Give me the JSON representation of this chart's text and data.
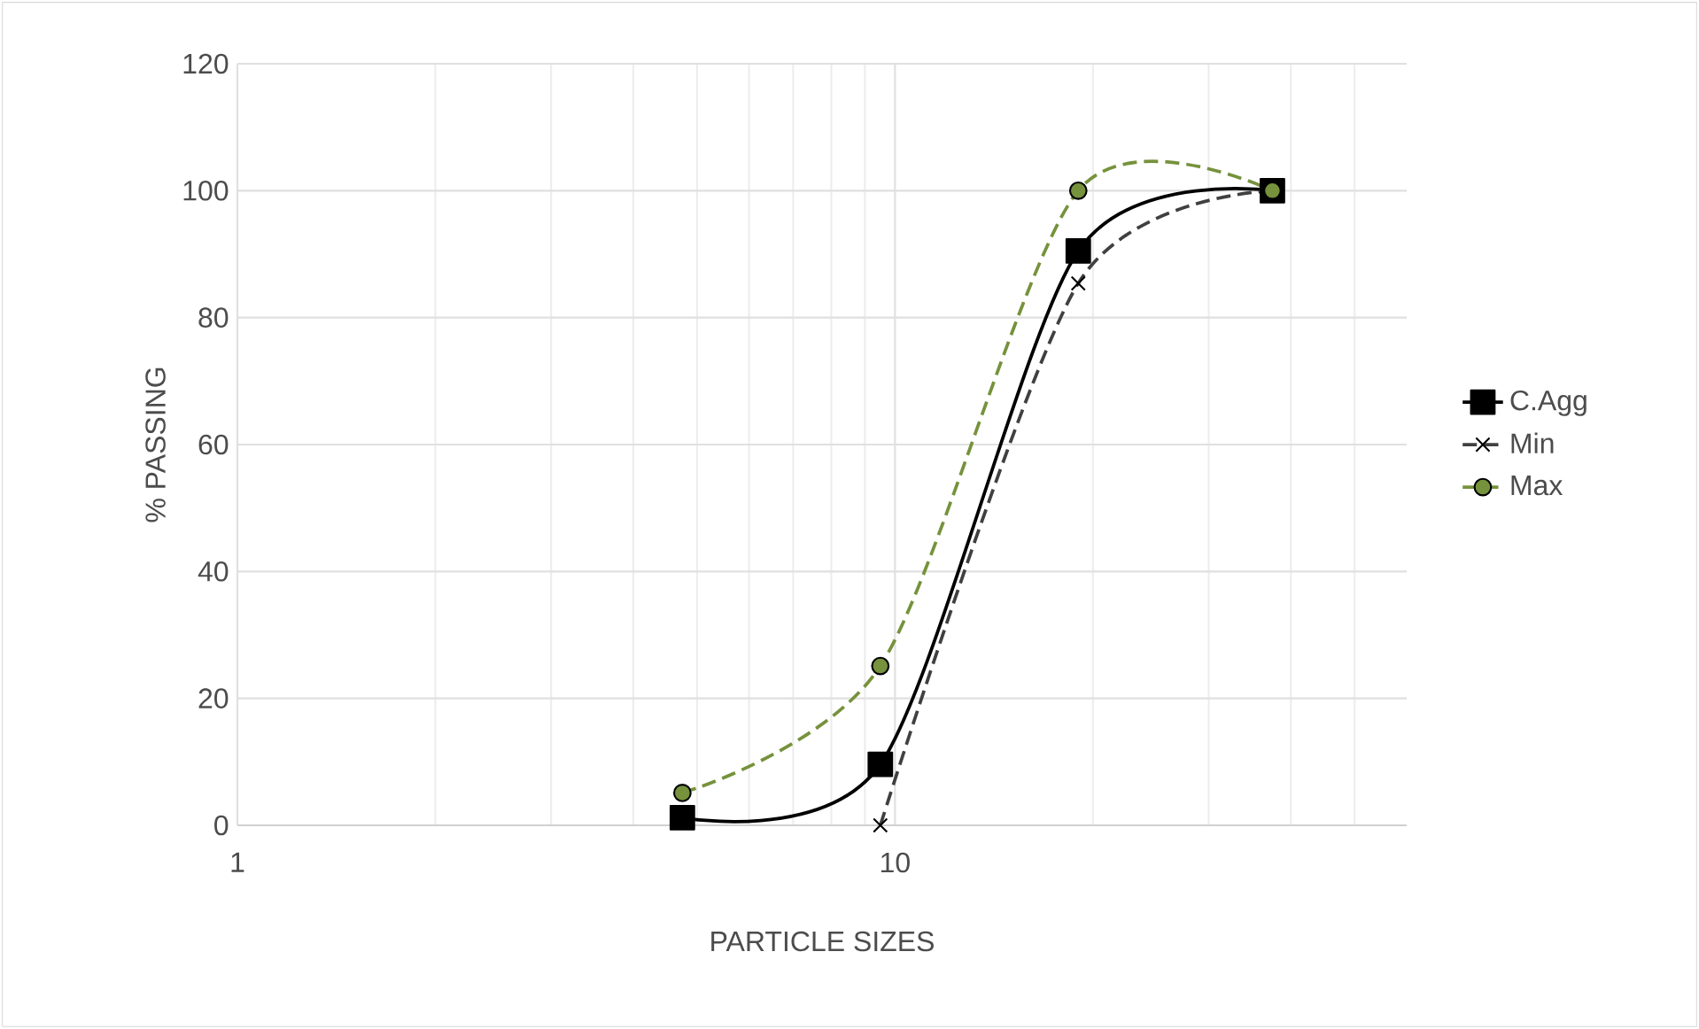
{
  "chart_data": {
    "type": "line",
    "xlabel": "PARTICLE SIZES",
    "ylabel": "% PASSING",
    "log": "x",
    "xlim": [
      1,
      60
    ],
    "xticks": [
      1,
      10
    ],
    "ylim": [
      0,
      120
    ],
    "yticks": [
      0,
      20,
      40,
      60,
      80,
      100,
      120
    ],
    "grid": true,
    "legend": "right",
    "series": [
      {
        "name": "C.Agg",
        "color": "#000000",
        "marker": "square",
        "line_style": "solid",
        "x": [
          4.75,
          9.5,
          19,
          37.5
        ],
        "values": [
          1.2,
          9.6,
          90.5,
          100
        ]
      },
      {
        "name": "Min",
        "color": "#404040",
        "marker": "cross",
        "line_style": "dashed",
        "x": [
          9.5,
          19,
          37.5
        ],
        "values": [
          0,
          85.4,
          100
        ]
      },
      {
        "name": "Max",
        "color": "#76923c",
        "marker": "circle",
        "line_style": "dashed",
        "x": [
          4.75,
          9.5,
          19,
          37.5
        ],
        "values": [
          5.1,
          25.1,
          100,
          100
        ]
      }
    ]
  }
}
